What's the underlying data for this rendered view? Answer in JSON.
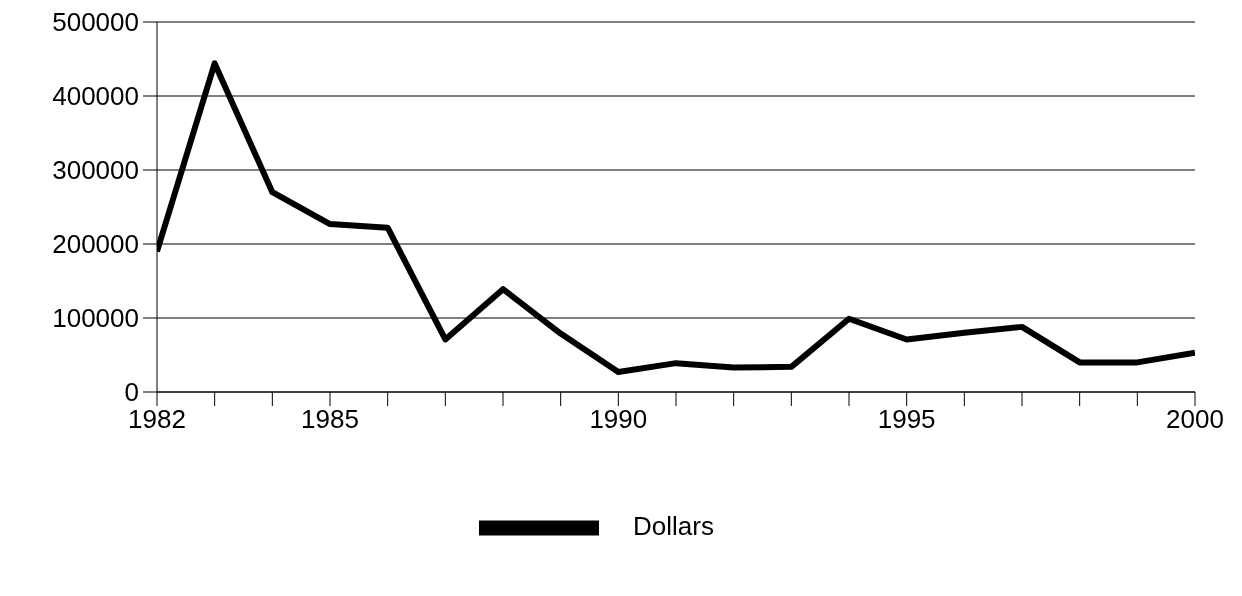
{
  "chart_data": {
    "type": "line",
    "x": [
      1982,
      1983,
      1984,
      1985,
      1986,
      1987,
      1988,
      1989,
      1990,
      1991,
      1992,
      1993,
      1994,
      1995,
      1996,
      1997,
      1998,
      1999,
      2000
    ],
    "series": [
      {
        "name": "Dollars",
        "color": "#000000",
        "values": [
          190000,
          444000,
          270000,
          227000,
          222000,
          71000,
          139000,
          79000,
          27000,
          39000,
          33000,
          34000,
          99000,
          71000,
          80000,
          88000,
          40000,
          40000,
          53000
        ]
      }
    ],
    "xlim": [
      1982,
      2000
    ],
    "xticks": [
      1982,
      {
        "value": 1983,
        "label": null
      },
      {
        "value": 1984,
        "label": null
      },
      1985,
      {
        "value": 1986,
        "label": null
      },
      {
        "value": 1987,
        "label": null
      },
      {
        "value": 1988,
        "label": null
      },
      {
        "value": 1989,
        "label": null
      },
      1990,
      {
        "value": 1991,
        "label": null
      },
      {
        "value": 1992,
        "label": null
      },
      {
        "value": 1993,
        "label": null
      },
      {
        "value": 1994,
        "label": null
      },
      1995,
      {
        "value": 1996,
        "label": null
      },
      {
        "value": 1997,
        "label": null
      },
      {
        "value": 1998,
        "label": null
      },
      {
        "value": 1999,
        "label": null
      },
      2000
    ],
    "ylim": [
      0,
      500000
    ],
    "yticks": [
      0,
      100000,
      200000,
      300000,
      400000,
      500000
    ],
    "grid": "y",
    "legend": "bottom",
    "marker": "none",
    "line_style": "solid"
  }
}
